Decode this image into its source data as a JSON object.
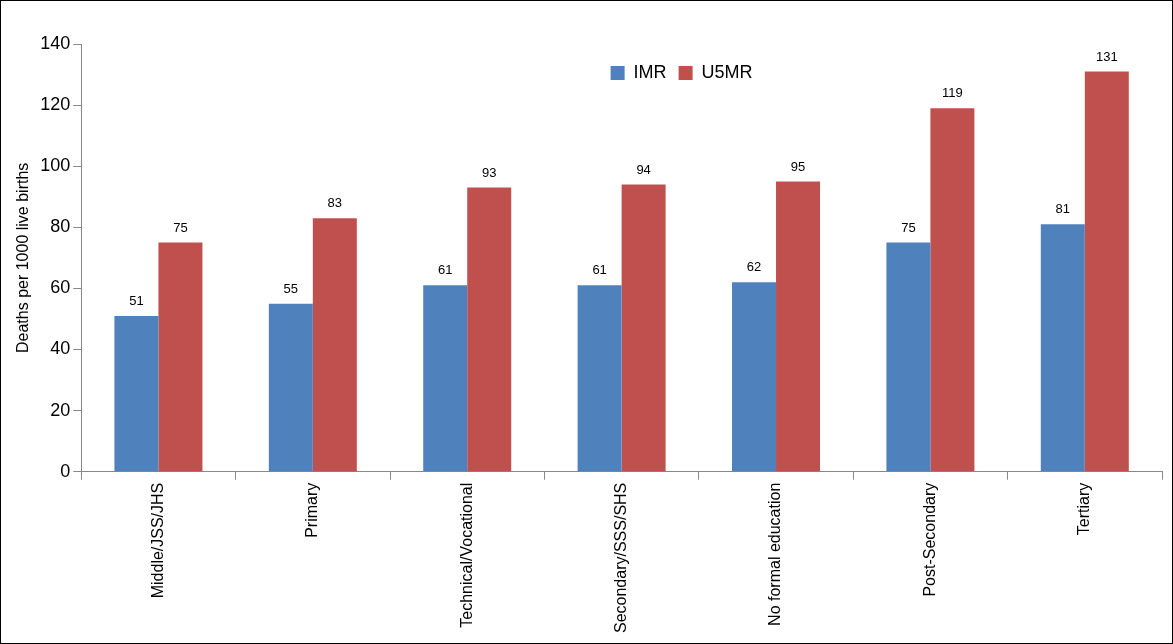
{
  "chart_data": {
    "type": "bar",
    "ylabel": "Deaths per 1000 live births",
    "categories": [
      "Middle/JSS/JHS",
      "Primary",
      "Technical/Vocational",
      "Secondary/SSS/SHS",
      "No formal education",
      "Post-Secondary",
      "Tertiary"
    ],
    "series": [
      {
        "name": "IMR",
        "color": "#4f81bd",
        "values": [
          51,
          55,
          61,
          61,
          62,
          75,
          81
        ]
      },
      {
        "name": "U5MR",
        "color": "#c0504d",
        "values": [
          75,
          83,
          93,
          94,
          95,
          119,
          131
        ]
      }
    ],
    "ylim": [
      0,
      140
    ],
    "yticks": [
      0,
      20,
      40,
      60,
      80,
      100,
      120,
      140
    ],
    "grid": false,
    "legend": "top",
    "data_labels": true
  }
}
